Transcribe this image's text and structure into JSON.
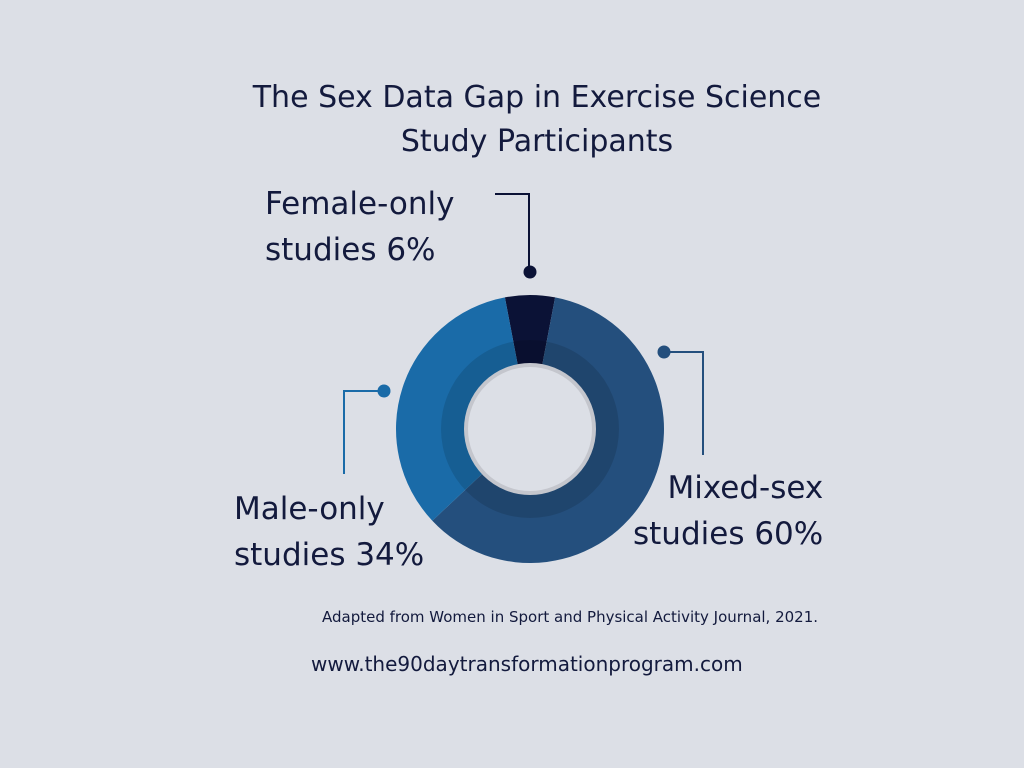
{
  "title": {
    "line1": "The Sex Data Gap in Exercise Science",
    "line2": "Study Participants"
  },
  "chart_data": {
    "type": "pie",
    "title": "The Sex Data Gap in Exercise Science Study Participants",
    "variant": "donut",
    "start": "Female-only slice centered at top, clockwise: Female-only, Mixed-sex, Male-only",
    "slices": [
      {
        "key": "female",
        "line1": "Female-only",
        "line2": "studies 6%",
        "value": 6,
        "color": "#0b1236"
      },
      {
        "key": "mixed",
        "line1": "Mixed-sex",
        "line2": "studies 60%",
        "value": 60,
        "color": "#244f7d"
      },
      {
        "key": "male",
        "line1": "Male-only",
        "line2": "studies 34%",
        "value": 34,
        "color": "#1a6ba8"
      }
    ],
    "colors": {
      "background": "#dcdfe6",
      "inner_ring_shade": "#000000",
      "center_fill": "#dcdfe6",
      "center_border": "#c4c6cd"
    }
  },
  "source": "Adapted from Women in Sport and Physical Activity Journal, 2021.",
  "website": "www.the90daytransformationprogram.com"
}
